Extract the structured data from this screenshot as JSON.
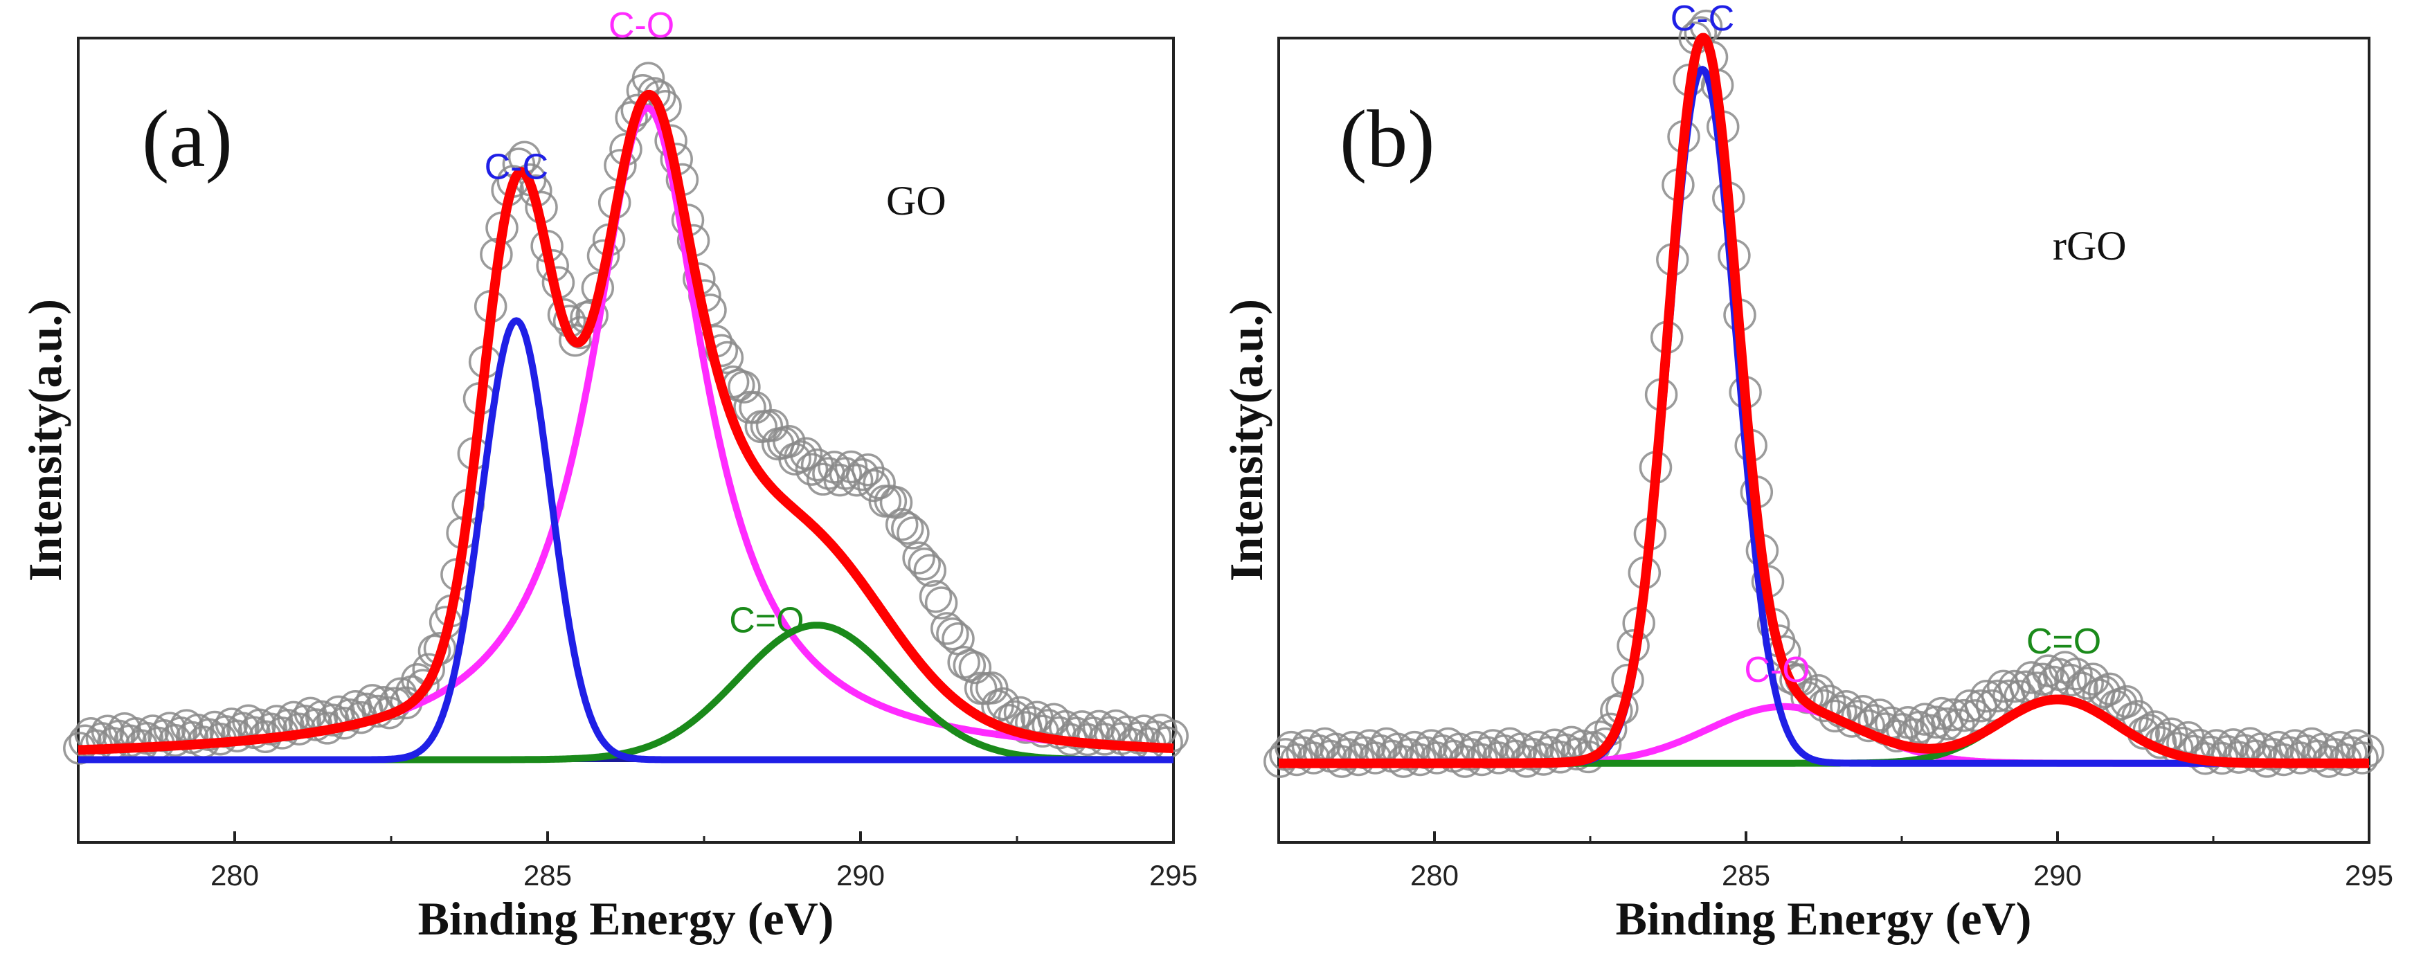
{
  "chart_data": [
    {
      "type": "line",
      "panel_label": "(a)",
      "sample_label": "GO",
      "xlabel": "Binding Energy (eV)",
      "ylabel": "Intensity(a.u.)",
      "xlim": [
        277.5,
        295
      ],
      "ylim": [
        0,
        1.1
      ],
      "xticks": [
        280,
        285,
        290,
        295
      ],
      "grid": false,
      "background": 0.02,
      "peaks": [
        {
          "name": "C-C",
          "center": 284.5,
          "amplitude": 0.62,
          "width": 0.55,
          "color": "#1f1fe6"
        },
        {
          "name": "C-O",
          "center": 286.6,
          "amplitude": 0.92,
          "width": 0.95,
          "color": "#ff2bff",
          "shape": "lorentzian"
        },
        {
          "name": "C=O",
          "center": 289.3,
          "amplitude": 0.19,
          "width": 1.25,
          "color": "#1a8a1a"
        }
      ],
      "raw_extra": [
        {
          "center": 290.5,
          "amplitude": 0.16,
          "width": 0.8
        },
        {
          "center": 288.4,
          "amplitude": 0.06,
          "width": 0.6
        }
      ],
      "peak_label_positions": [
        {
          "name": "C-C",
          "x": 284.5,
          "y": 0.84
        },
        {
          "name": "C-O",
          "x": 286.5,
          "y": 1.04
        },
        {
          "name": "C=O",
          "x": 288.5,
          "y": 0.2
        }
      ],
      "series_colors": {
        "raw": "#8a8a8a",
        "fit": "#ff0000",
        "baseline": "#1a1a9a"
      }
    },
    {
      "type": "line",
      "panel_label": "(b)",
      "sample_label": "rGO",
      "xlabel": "Binding Energy (eV)",
      "ylabel": "Intensity(a.u.)",
      "xlim": [
        277.5,
        295
      ],
      "ylim": [
        0,
        1.1
      ],
      "xticks": [
        280,
        285,
        290,
        295
      ],
      "grid": false,
      "background": 0.015,
      "peaks": [
        {
          "name": "C-C",
          "center": 284.3,
          "amplitude": 0.98,
          "width": 0.55,
          "color": "#1f1fe6"
        },
        {
          "name": "C-O",
          "center": 285.6,
          "amplitude": 0.08,
          "width": 1.2,
          "color": "#ff2bff"
        },
        {
          "name": "C=O",
          "center": 290.0,
          "amplitude": 0.09,
          "width": 0.95,
          "color": "#1a8a1a"
        }
      ],
      "raw_extra": [
        {
          "center": 288.6,
          "amplitude": 0.025,
          "width": 0.8
        },
        {
          "center": 290.6,
          "amplitude": 0.02,
          "width": 0.6
        }
      ],
      "peak_label_positions": [
        {
          "name": "C-C",
          "x": 284.3,
          "y": 1.05
        },
        {
          "name": "C-O",
          "x": 285.5,
          "y": 0.13
        },
        {
          "name": "C=O",
          "x": 290.1,
          "y": 0.17
        }
      ],
      "series_colors": {
        "raw": "#8a8a8a",
        "fit": "#ff0000",
        "baseline": "#1a1a9a"
      }
    }
  ]
}
